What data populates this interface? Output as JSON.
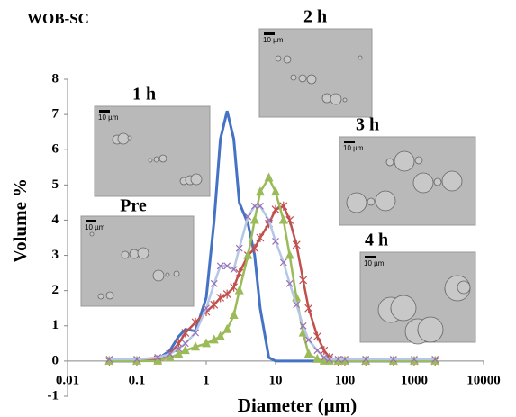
{
  "chart_data": {
    "type": "line",
    "title": "WOB-SC",
    "x_label": "Diameter (µm)",
    "y_label": "Volume %",
    "log_x": true,
    "xlim": [
      0.01,
      10000
    ],
    "xticks": [
      0.01,
      0.1,
      1,
      10,
      100,
      1000,
      10000
    ],
    "ylim": [
      -1,
      8
    ],
    "yticks": [
      -1,
      0,
      1,
      2,
      3,
      4,
      5,
      6,
      7,
      8
    ],
    "x": [
      0.04,
      0.1,
      0.2,
      0.3,
      0.4,
      0.5,
      0.7,
      1,
      1.3,
      1.6,
      2,
      2.5,
      3,
      4,
      5,
      6,
      8,
      10,
      13,
      16,
      20,
      25,
      30,
      40,
      50,
      60,
      80,
      100,
      200,
      500,
      1000,
      2000
    ],
    "series": [
      {
        "color": "#4472c4",
        "marker": "none",
        "values": [
          0,
          0,
          0.05,
          0.3,
          0.7,
          0.9,
          0.85,
          1.8,
          4,
          6.3,
          7.1,
          6.3,
          4.5,
          3.9,
          3,
          1.5,
          0.1,
          0,
          0,
          0,
          0,
          0,
          0,
          0,
          0,
          0,
          0,
          0,
          0,
          0,
          0,
          0
        ]
      },
      {
        "color": "#c0504d",
        "marker": "star",
        "values": [
          0,
          0,
          0.05,
          0.2,
          0.5,
          0.8,
          1.1,
          1.4,
          1.6,
          1.8,
          1.9,
          2.1,
          2.5,
          3,
          3.2,
          3.5,
          3.9,
          4.3,
          4.4,
          4,
          3.3,
          2.3,
          1.5,
          0.7,
          0.3,
          0.1,
          0,
          0,
          0,
          0,
          0,
          0
        ]
      },
      {
        "color": "#9bbb59",
        "marker": "triangle",
        "values": [
          0,
          0,
          0,
          0.1,
          0.2,
          0.3,
          0.4,
          0.5,
          0.6,
          0.7,
          0.9,
          1.3,
          2,
          3,
          4,
          4.8,
          5.2,
          4.8,
          4,
          3,
          1.8,
          0.8,
          0.2,
          0.05,
          0,
          0,
          0,
          0,
          0,
          0,
          0,
          0
        ]
      },
      {
        "color": "#b4c7e7",
        "marker": "cross",
        "values": [
          0.05,
          0.05,
          0.1,
          0.2,
          0.35,
          0.5,
          0.8,
          1.5,
          2.2,
          2.7,
          2.7,
          2.6,
          3.2,
          4.1,
          4.4,
          4.4,
          4,
          3.4,
          2.8,
          2.2,
          1.6,
          1,
          0.6,
          0.3,
          0.1,
          0.05,
          0.05,
          0.05,
          0.05,
          0.05,
          0.05,
          0.05
        ]
      }
    ],
    "annotations": [
      {
        "label": "Pre",
        "scale": "10 µm"
      },
      {
        "label": "1 h",
        "scale": "10 µm"
      },
      {
        "label": "2 h",
        "scale": "10 µm"
      },
      {
        "label": "3 h",
        "scale": "10 µm"
      },
      {
        "label": "4 h",
        "scale": "10 µm"
      }
    ]
  }
}
